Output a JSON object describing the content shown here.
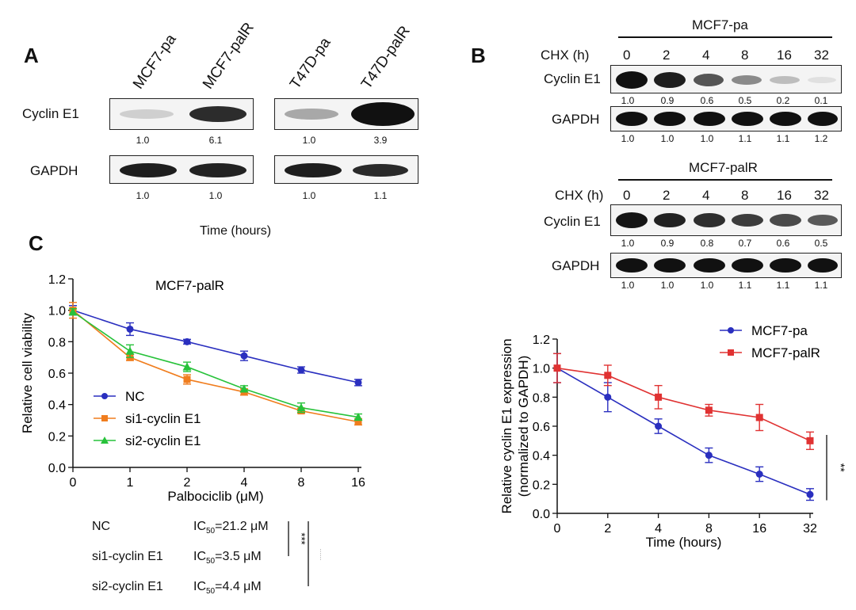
{
  "panels": {
    "a": "A",
    "b": "B",
    "c": "C"
  },
  "panel_a": {
    "lanes_left": [
      "MCF7-pa",
      "MCF7-palR"
    ],
    "lanes_right": [
      "T47D-pa",
      "T47D-palR"
    ],
    "rows": [
      "Cyclin E1",
      "GAPDH"
    ],
    "cyclin_quant": [
      "1.0",
      "6.1",
      "1.0",
      "3.9"
    ],
    "gapdh_quant": [
      "1.0",
      "1.0",
      "1.0",
      "1.1"
    ],
    "stray_text": "Time (hours)"
  },
  "panel_b": {
    "blot1": {
      "title": "MCF7-pa",
      "chx_label": "CHX (h)",
      "times": [
        "0",
        "2",
        "4",
        "8",
        "16",
        "32"
      ],
      "row1": "Cyclin E1",
      "row2": "GAPDH",
      "cyclin_quant": [
        "1.0",
        "0.9",
        "0.6",
        "0.5",
        "0.2",
        "0.1"
      ],
      "gapdh_quant": [
        "1.0",
        "1.0",
        "1.0",
        "1.1",
        "1.1",
        "1.2"
      ]
    },
    "blot2": {
      "title": "MCF7-palR",
      "chx_label": "CHX (h)",
      "times": [
        "0",
        "2",
        "4",
        "8",
        "16",
        "32"
      ],
      "row1": "Cyclin E1",
      "row2": "GAPDH",
      "cyclin_quant": [
        "1.0",
        "0.9",
        "0.8",
        "0.7",
        "0.6",
        "0.5"
      ],
      "gapdh_quant": [
        "1.0",
        "1.0",
        "1.0",
        "1.1",
        "1.1",
        "1.1"
      ]
    }
  },
  "ic50": {
    "rows": [
      {
        "name": "NC",
        "ic": "IC",
        "sub": "50",
        "value": "=21.2 μM"
      },
      {
        "name": "si1-cyclin E1",
        "ic": "IC",
        "sub": "50",
        "value": "=3.5 μM"
      },
      {
        "name": "si2-cyclin E1",
        "ic": "IC",
        "sub": "50",
        "value": "=4.4 μM"
      }
    ],
    "sig1": "***",
    "sig2": "***"
  },
  "chart_data": [
    {
      "type": "line",
      "title": "MCF7-palR",
      "xlabel": "Palbociclib (μM)",
      "ylabel": "Relative cell viability",
      "categories": [
        "0",
        "1",
        "2",
        "4",
        "8",
        "16"
      ],
      "ylim": [
        0,
        1.2
      ],
      "yticks": [
        "0.0",
        "0.2",
        "0.4",
        "0.6",
        "0.8",
        "1.0",
        "1.2"
      ],
      "legend_position": "left-middle",
      "series": [
        {
          "name": "NC",
          "color": "#2a2fbf",
          "marker": "circle",
          "values": [
            1.0,
            0.88,
            0.8,
            0.71,
            0.62,
            0.54
          ],
          "errors": [
            0.03,
            0.04,
            0.015,
            0.03,
            0.02,
            0.02
          ]
        },
        {
          "name": "si1-cyclin E1",
          "color": "#f07d1e",
          "marker": "square",
          "values": [
            1.0,
            0.7,
            0.56,
            0.48,
            0.36,
            0.29
          ],
          "errors": [
            0.05,
            0.02,
            0.03,
            0.02,
            0.015,
            0.02
          ]
        },
        {
          "name": "si2-cyclin E1",
          "color": "#27c23a",
          "marker": "triangle",
          "values": [
            0.99,
            0.74,
            0.64,
            0.5,
            0.38,
            0.32
          ],
          "errors": [
            0.02,
            0.04,
            0.03,
            0.02,
            0.03,
            0.02
          ]
        }
      ]
    },
    {
      "type": "line",
      "title": "",
      "xlabel": "Time (hours)",
      "ylabel": "Relative cyclin E1 expression (normalized to GAPDH)",
      "ylabel_lines": [
        "Relative cyclin E1 expression",
        "(normalized to GAPDH)"
      ],
      "categories": [
        "0",
        "2",
        "4",
        "8",
        "16",
        "32"
      ],
      "ylim": [
        0,
        1.2
      ],
      "yticks": [
        "0.0",
        "0.2",
        "0.4",
        "0.6",
        "0.8",
        "1.0",
        "1.2"
      ],
      "legend_position": "top-right",
      "significance": "**",
      "series": [
        {
          "name": "MCF7-pa",
          "color": "#2a2fbf",
          "marker": "circle",
          "values": [
            1.0,
            0.8,
            0.6,
            0.4,
            0.27,
            0.13
          ],
          "errors": [
            0.1,
            0.1,
            0.05,
            0.05,
            0.05,
            0.04
          ]
        },
        {
          "name": "MCF7-palR",
          "color": "#e03232",
          "marker": "square",
          "values": [
            1.0,
            0.95,
            0.8,
            0.71,
            0.66,
            0.5
          ],
          "errors": [
            0.1,
            0.07,
            0.08,
            0.04,
            0.09,
            0.06
          ]
        }
      ]
    }
  ]
}
